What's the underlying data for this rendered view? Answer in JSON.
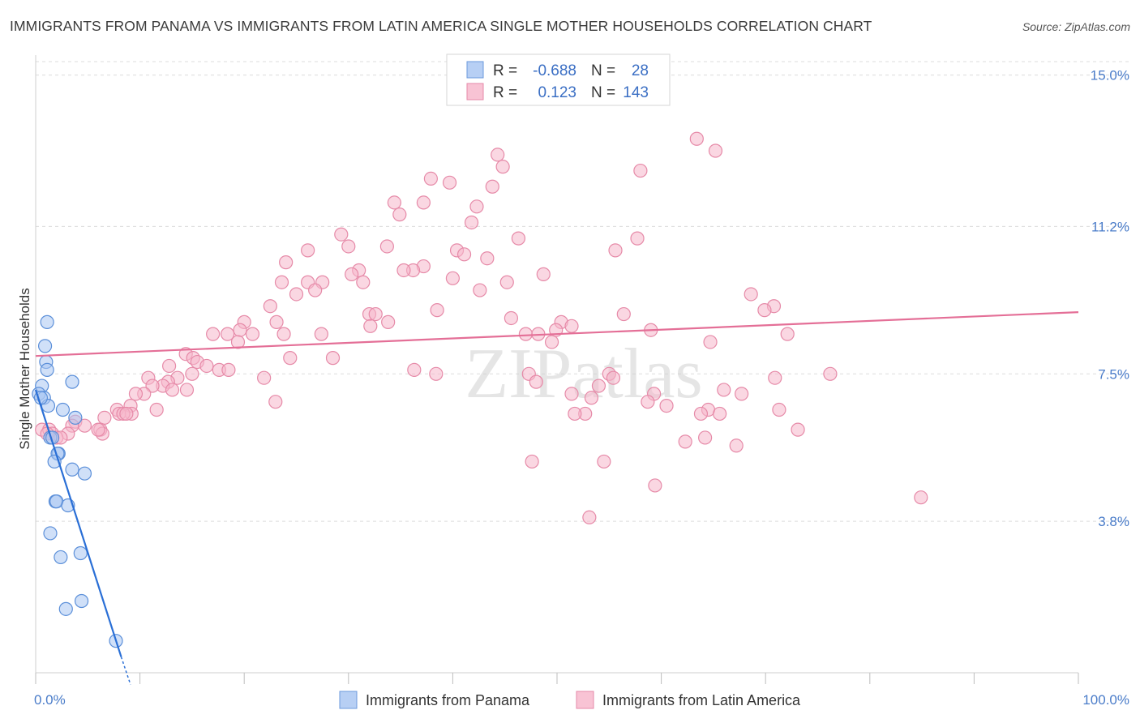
{
  "title": "IMMIGRANTS FROM PANAMA VS IMMIGRANTS FROM LATIN AMERICA SINGLE MOTHER HOUSEHOLDS CORRELATION CHART",
  "source": "Source: ZipAtlas.com",
  "watermark": "ZIPatlas",
  "colors": {
    "panama_fill": "#a9c6f2",
    "panama_stroke": "#5b8fd9",
    "panama_line": "#2a6fd6",
    "latin_fill": "#f6b7cb",
    "latin_stroke": "#e68aa8",
    "latin_line": "#e46f97",
    "tick_label": "#4a7cc9",
    "grid": "#dcdcdc"
  },
  "legend": {
    "rows": [
      {
        "r_label": "R =",
        "r_value": "-0.688",
        "n_label": "N =",
        "n_value": "28"
      },
      {
        "r_label": "R =",
        "r_value": "0.123",
        "n_label": "N =",
        "n_value": "143"
      }
    ]
  },
  "chart_data": {
    "type": "scatter",
    "title": "IMMIGRANTS FROM PANAMA VS IMMIGRANTS FROM LATIN AMERICA SINGLE MOTHER HOUSEHOLDS CORRELATION CHART",
    "xlabel": "",
    "ylabel": "Single Mother Households",
    "xlim": [
      0,
      100
    ],
    "ylim": [
      0,
      15.5
    ],
    "x_tick_labels": [
      "0.0%",
      "100.0%"
    ],
    "y_ticks": [
      3.8,
      7.5,
      11.2,
      15.0
    ],
    "y_tick_labels": [
      "3.8%",
      "7.5%",
      "11.2%",
      "15.0%"
    ],
    "grid": true,
    "legend_position": "top-center",
    "series": [
      {
        "name": "Immigrants from Panama",
        "color": "#a9c6f2",
        "points": [
          [
            1.1,
            8.8
          ],
          [
            0.9,
            8.2
          ],
          [
            1.0,
            7.8
          ],
          [
            1.1,
            7.6
          ],
          [
            3.5,
            7.3
          ],
          [
            0.6,
            7.2
          ],
          [
            0.3,
            7.0
          ],
          [
            0.8,
            6.9
          ],
          [
            1.2,
            6.7
          ],
          [
            2.6,
            6.6
          ],
          [
            3.8,
            6.4
          ],
          [
            1.4,
            5.9
          ],
          [
            1.6,
            5.9
          ],
          [
            2.2,
            5.5
          ],
          [
            2.1,
            5.5
          ],
          [
            1.8,
            5.3
          ],
          [
            3.5,
            5.1
          ],
          [
            4.7,
            5.0
          ],
          [
            1.9,
            4.3
          ],
          [
            2.0,
            4.3
          ],
          [
            3.1,
            4.2
          ],
          [
            1.4,
            3.5
          ],
          [
            4.3,
            3.0
          ],
          [
            2.4,
            2.9
          ],
          [
            4.4,
            1.8
          ],
          [
            2.9,
            1.6
          ],
          [
            7.7,
            0.8
          ],
          [
            0.5,
            6.9
          ]
        ]
      },
      {
        "name": "Immigrants from Latin America",
        "color": "#f6b7cb",
        "points": [
          [
            63.4,
            13.4
          ],
          [
            65.2,
            13.1
          ],
          [
            44.3,
            13.0
          ],
          [
            44.8,
            12.7
          ],
          [
            58.0,
            12.6
          ],
          [
            37.9,
            12.4
          ],
          [
            39.7,
            12.3
          ],
          [
            43.8,
            12.2
          ],
          [
            37.2,
            11.8
          ],
          [
            34.4,
            11.8
          ],
          [
            42.3,
            11.7
          ],
          [
            34.9,
            11.5
          ],
          [
            41.8,
            11.3
          ],
          [
            29.3,
            11.0
          ],
          [
            46.3,
            10.9
          ],
          [
            30.0,
            10.7
          ],
          [
            26.1,
            10.6
          ],
          [
            33.7,
            10.7
          ],
          [
            40.4,
            10.6
          ],
          [
            55.6,
            10.6
          ],
          [
            41.1,
            10.5
          ],
          [
            24.0,
            10.3
          ],
          [
            43.3,
            10.4
          ],
          [
            57.7,
            10.9
          ],
          [
            31.0,
            10.1
          ],
          [
            37.2,
            10.2
          ],
          [
            36.2,
            10.1
          ],
          [
            35.3,
            10.1
          ],
          [
            30.3,
            10.0
          ],
          [
            48.7,
            10.0
          ],
          [
            23.6,
            9.8
          ],
          [
            26.1,
            9.8
          ],
          [
            31.4,
            9.8
          ],
          [
            27.5,
            9.8
          ],
          [
            45.2,
            9.8
          ],
          [
            40.0,
            9.9
          ],
          [
            42.6,
            9.6
          ],
          [
            26.8,
            9.6
          ],
          [
            25.0,
            9.5
          ],
          [
            68.6,
            9.5
          ],
          [
            70.8,
            9.2
          ],
          [
            69.9,
            9.1
          ],
          [
            22.5,
            9.2
          ],
          [
            38.5,
            9.1
          ],
          [
            56.4,
            9.0
          ],
          [
            32.0,
            9.0
          ],
          [
            32.6,
            9.0
          ],
          [
            45.6,
            8.9
          ],
          [
            50.4,
            8.8
          ],
          [
            20.0,
            8.8
          ],
          [
            33.8,
            8.8
          ],
          [
            23.1,
            8.8
          ],
          [
            32.1,
            8.7
          ],
          [
            51.4,
            8.7
          ],
          [
            49.9,
            8.6
          ],
          [
            59.0,
            8.6
          ],
          [
            17.0,
            8.5
          ],
          [
            19.6,
            8.6
          ],
          [
            23.8,
            8.5
          ],
          [
            27.4,
            8.5
          ],
          [
            20.8,
            8.5
          ],
          [
            47.0,
            8.5
          ],
          [
            48.2,
            8.5
          ],
          [
            18.4,
            8.5
          ],
          [
            72.1,
            8.5
          ],
          [
            64.7,
            8.3
          ],
          [
            19.4,
            8.3
          ],
          [
            49.5,
            8.3
          ],
          [
            14.4,
            8.0
          ],
          [
            24.4,
            7.9
          ],
          [
            28.5,
            7.9
          ],
          [
            15.1,
            7.9
          ],
          [
            15.5,
            7.8
          ],
          [
            12.8,
            7.7
          ],
          [
            16.4,
            7.7
          ],
          [
            17.6,
            7.6
          ],
          [
            18.5,
            7.6
          ],
          [
            36.3,
            7.6
          ],
          [
            47.3,
            7.5
          ],
          [
            55.0,
            7.5
          ],
          [
            38.4,
            7.5
          ],
          [
            70.9,
            7.4
          ],
          [
            76.2,
            7.5
          ],
          [
            55.4,
            7.4
          ],
          [
            15.0,
            7.5
          ],
          [
            21.9,
            7.4
          ],
          [
            10.8,
            7.4
          ],
          [
            13.6,
            7.4
          ],
          [
            12.7,
            7.3
          ],
          [
            48.0,
            7.3
          ],
          [
            12.2,
            7.2
          ],
          [
            11.2,
            7.2
          ],
          [
            13.1,
            7.1
          ],
          [
            14.5,
            7.1
          ],
          [
            54.0,
            7.2
          ],
          [
            59.3,
            7.0
          ],
          [
            66.0,
            7.1
          ],
          [
            51.4,
            7.0
          ],
          [
            67.7,
            7.0
          ],
          [
            10.4,
            7.0
          ],
          [
            9.6,
            7.0
          ],
          [
            23.0,
            6.8
          ],
          [
            9.1,
            6.7
          ],
          [
            58.7,
            6.8
          ],
          [
            53.3,
            6.9
          ],
          [
            7.8,
            6.6
          ],
          [
            11.6,
            6.6
          ],
          [
            60.5,
            6.7
          ],
          [
            9.2,
            6.5
          ],
          [
            64.5,
            6.6
          ],
          [
            71.3,
            6.6
          ],
          [
            8.0,
            6.5
          ],
          [
            8.4,
            6.5
          ],
          [
            8.7,
            6.5
          ],
          [
            63.8,
            6.5
          ],
          [
            52.7,
            6.5
          ],
          [
            51.7,
            6.5
          ],
          [
            65.6,
            6.5
          ],
          [
            6.6,
            6.4
          ],
          [
            3.8,
            6.3
          ],
          [
            4.7,
            6.2
          ],
          [
            6.2,
            6.1
          ],
          [
            3.5,
            6.2
          ],
          [
            0.6,
            6.1
          ],
          [
            1.3,
            6.1
          ],
          [
            3.1,
            6.0
          ],
          [
            6.4,
            6.0
          ],
          [
            73.1,
            6.1
          ],
          [
            1.6,
            6.0
          ],
          [
            2.0,
            5.9
          ],
          [
            2.4,
            5.9
          ],
          [
            64.2,
            5.9
          ],
          [
            6.0,
            6.1
          ],
          [
            62.3,
            5.8
          ],
          [
            67.2,
            5.7
          ],
          [
            47.6,
            5.3
          ],
          [
            54.5,
            5.3
          ],
          [
            59.4,
            4.7
          ],
          [
            84.9,
            4.4
          ],
          [
            53.1,
            3.9
          ],
          [
            1.1,
            6.0
          ]
        ]
      }
    ],
    "trend_lines": [
      {
        "series": "Immigrants from Panama",
        "x": [
          0.0,
          8.2
        ],
        "y": [
          7.1,
          0.4
        ]
      },
      {
        "series": "Immigrants from Latin America",
        "x": [
          0.0,
          100.0
        ],
        "y": [
          7.95,
          9.05
        ]
      }
    ]
  }
}
